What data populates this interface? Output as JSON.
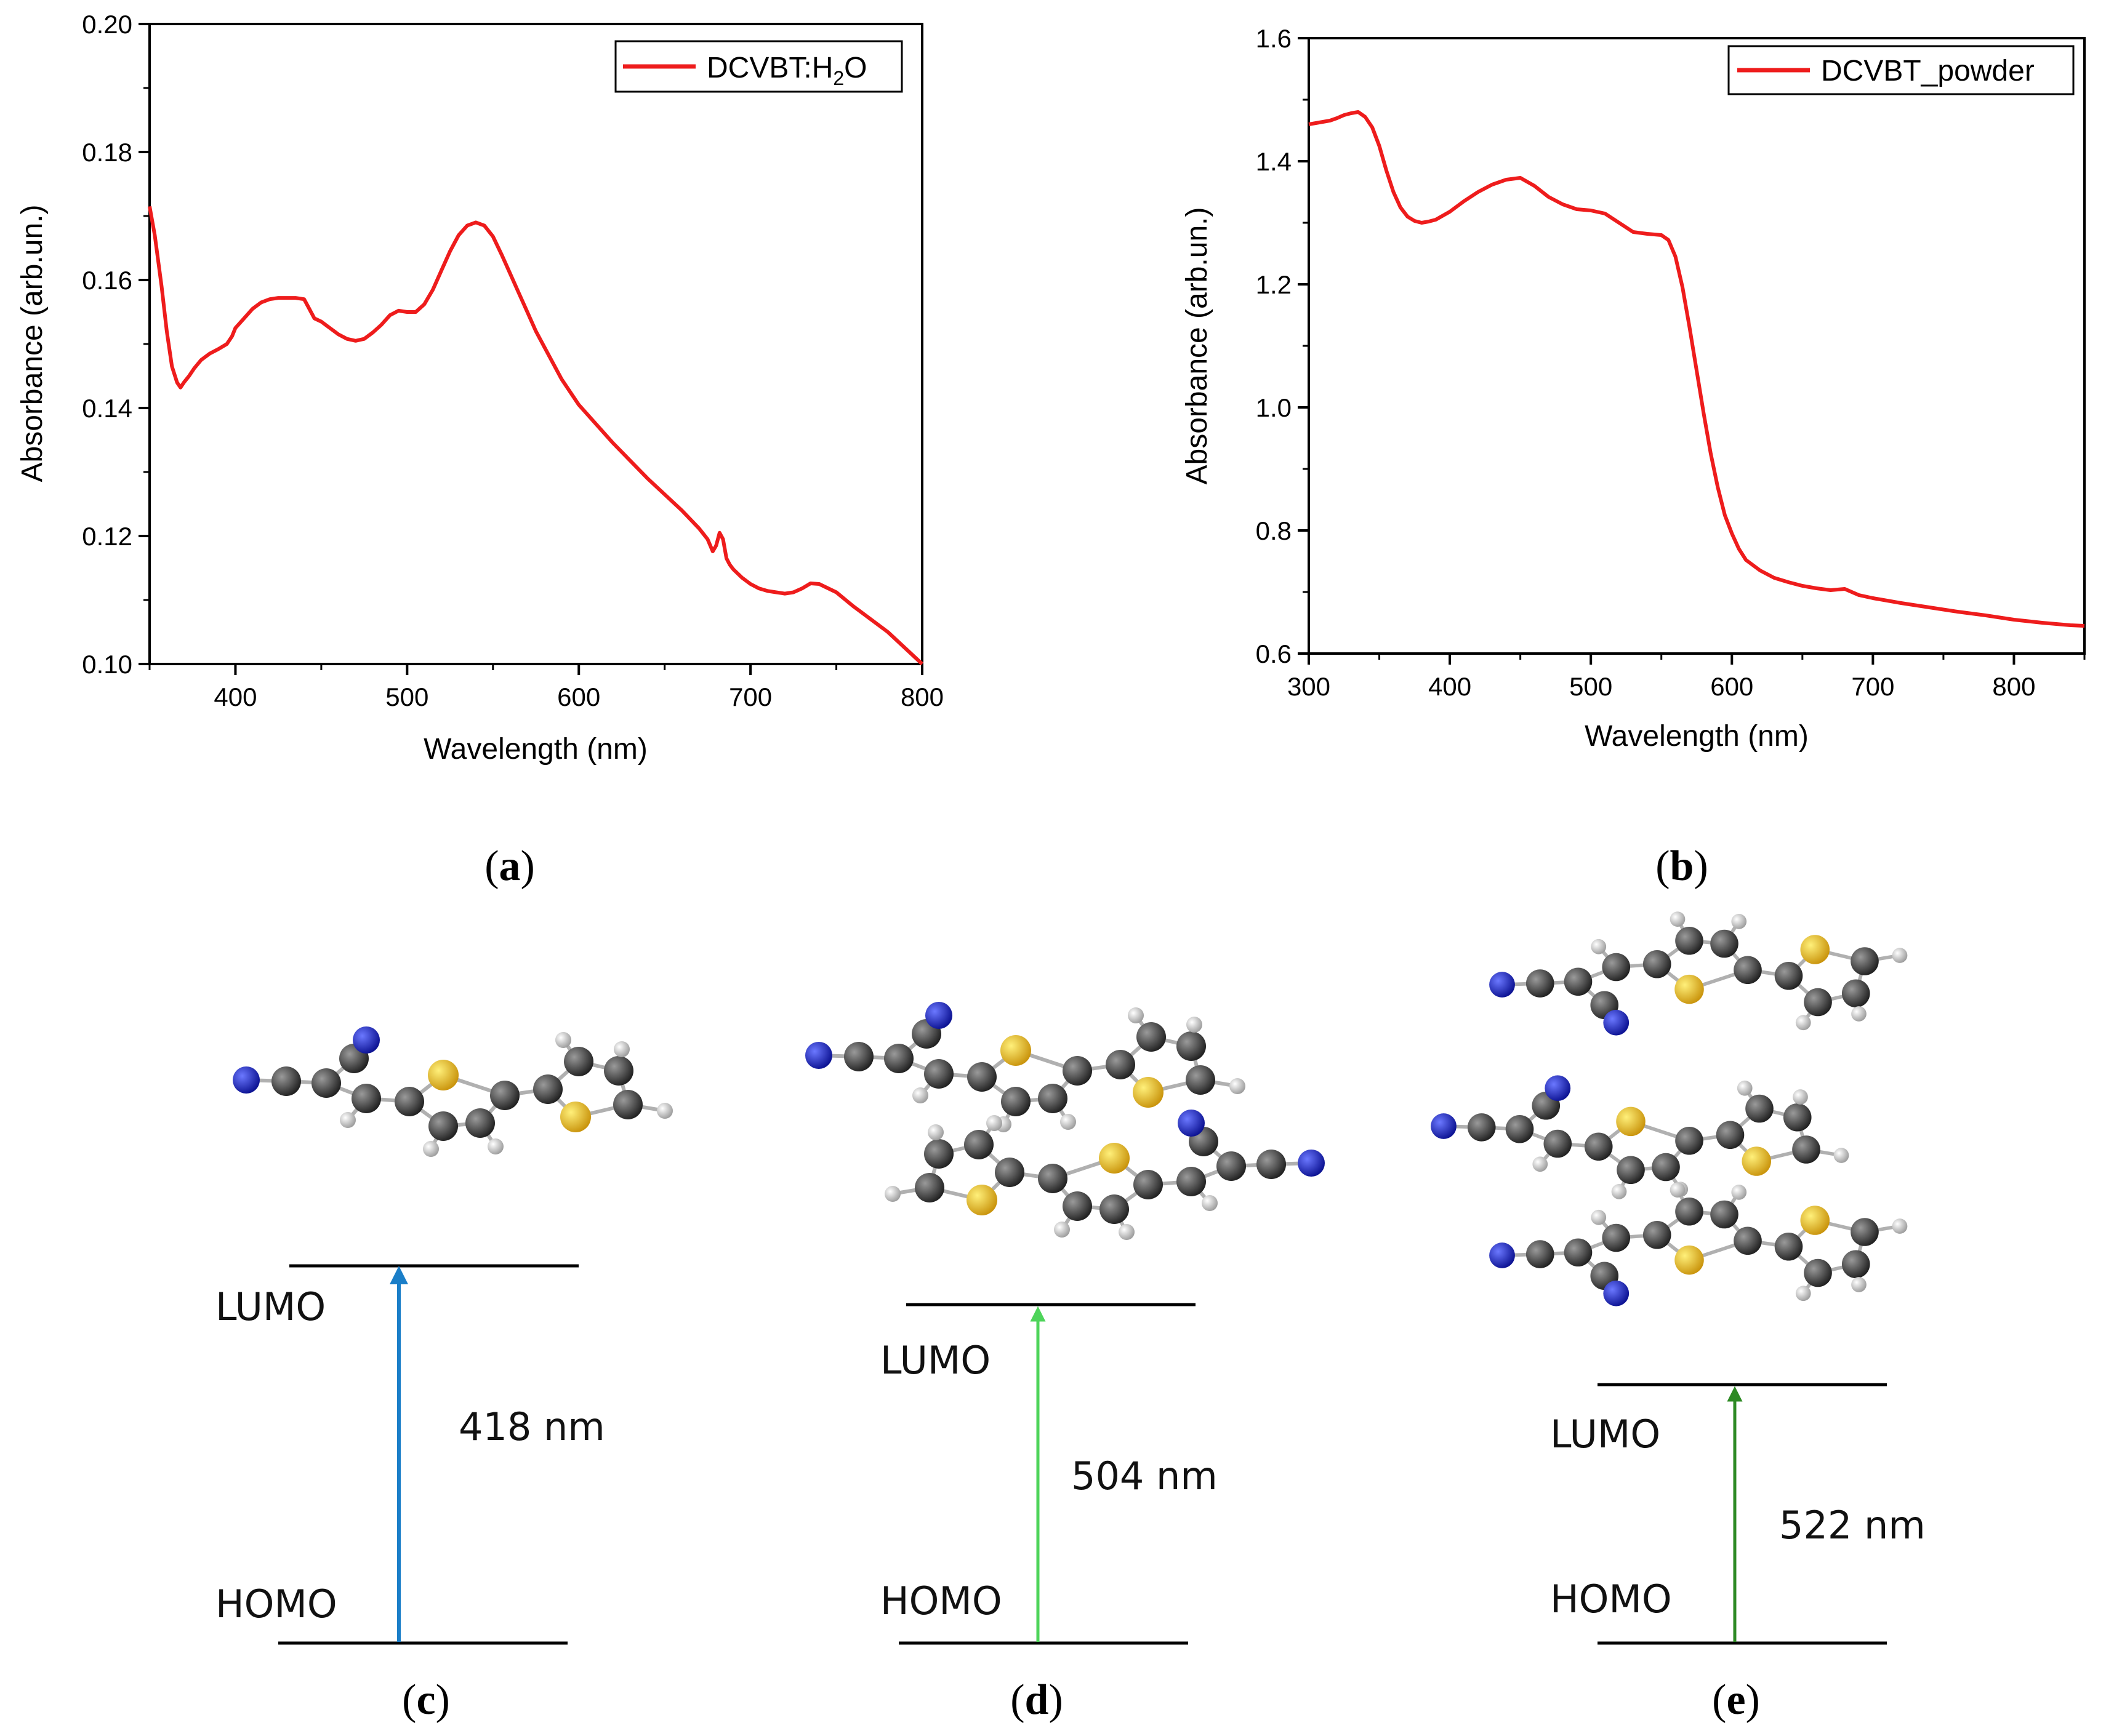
{
  "captions": {
    "a": {
      "open": "(",
      "letter": "a",
      "close": ")"
    },
    "b": {
      "open": "(",
      "letter": "b",
      "close": ")"
    },
    "c": {
      "open": "(",
      "letter": "c",
      "close": ")"
    },
    "d": {
      "open": "(",
      "letter": "d",
      "close": ")"
    },
    "e": {
      "open": "(",
      "letter": "e",
      "close": ")"
    }
  },
  "chart_data": [
    {
      "id": "a",
      "type": "line",
      "xlabel": "Wavelength (nm)",
      "ylabel": "Absorbance (arb.un.)",
      "xlim": [
        350,
        800
      ],
      "ylim": [
        0.1,
        0.2
      ],
      "xticks": [
        400,
        500,
        600,
        700,
        800
      ],
      "xtick_labels": [
        "400",
        "500",
        "600",
        "700",
        "800"
      ],
      "yticks": [
        0.1,
        0.12,
        0.14,
        0.16,
        0.18,
        0.2
      ],
      "ytick_labels": [
        "0.10",
        "0.12",
        "0.14",
        "0.16",
        "0.18",
        "0.20"
      ],
      "legend_position": "top-right",
      "series": [
        {
          "name": "DCVBT:H2O",
          "legend_main": "DCVBT:H",
          "legend_sub": "2",
          "legend_tail": "O",
          "color": "#ee1c1c",
          "x": [
            350,
            353,
            357,
            360,
            363,
            366,
            368,
            370,
            373,
            376,
            380,
            385,
            390,
            395,
            398,
            400,
            405,
            410,
            415,
            420,
            425,
            430,
            435,
            440,
            443,
            446,
            450,
            455,
            460,
            465,
            470,
            475,
            480,
            485,
            490,
            495,
            500,
            505,
            510,
            515,
            520,
            525,
            530,
            535,
            540,
            545,
            550,
            555,
            560,
            565,
            570,
            575,
            580,
            590,
            600,
            620,
            640,
            660,
            670,
            675,
            678,
            680,
            682,
            684,
            686,
            688,
            690,
            695,
            700,
            705,
            710,
            715,
            720,
            725,
            730,
            735,
            740,
            750,
            760,
            770,
            780,
            790,
            800
          ],
          "y": [
            0.1715,
            0.167,
            0.159,
            0.152,
            0.1465,
            0.144,
            0.1432,
            0.144,
            0.145,
            0.1462,
            0.1475,
            0.1485,
            0.1492,
            0.15,
            0.1512,
            0.1525,
            0.154,
            0.1555,
            0.1565,
            0.157,
            0.1572,
            0.1572,
            0.1572,
            0.157,
            0.1555,
            0.154,
            0.1535,
            0.1525,
            0.1515,
            0.1508,
            0.1505,
            0.1508,
            0.1518,
            0.153,
            0.1545,
            0.1552,
            0.155,
            0.155,
            0.1562,
            0.1585,
            0.1615,
            0.1645,
            0.167,
            0.1685,
            0.169,
            0.1685,
            0.1668,
            0.164,
            0.161,
            0.158,
            0.155,
            0.152,
            0.1495,
            0.1445,
            0.1405,
            0.1345,
            0.129,
            0.124,
            0.1212,
            0.1195,
            0.1176,
            0.1185,
            0.1205,
            0.1195,
            0.1165,
            0.1155,
            0.1148,
            0.1135,
            0.1125,
            0.1118,
            0.1114,
            0.1112,
            0.111,
            0.1112,
            0.1118,
            0.1126,
            0.1125,
            0.1112,
            0.109,
            0.107,
            0.105,
            0.1025,
            0.1
          ]
        }
      ]
    },
    {
      "id": "b",
      "type": "line",
      "xlabel": "Wavelength (nm)",
      "ylabel": "Absorbance (arb.un.)",
      "xlim": [
        300,
        850
      ],
      "ylim": [
        0.6,
        1.6
      ],
      "xticks": [
        300,
        400,
        500,
        600,
        700,
        800
      ],
      "xtick_labels": [
        "300",
        "400",
        "500",
        "600",
        "700",
        "800"
      ],
      "yticks": [
        0.6,
        0.8,
        1.0,
        1.2,
        1.4,
        1.6
      ],
      "ytick_labels": [
        "0.6",
        "0.8",
        "1.0",
        "1.2",
        "1.4",
        "1.6"
      ],
      "legend_position": "top-right",
      "series": [
        {
          "name": "DCVBT_powder",
          "color": "#ee1c1c",
          "x": [
            300,
            305,
            310,
            315,
            320,
            325,
            330,
            335,
            340,
            345,
            350,
            355,
            360,
            365,
            370,
            375,
            380,
            385,
            390,
            400,
            410,
            420,
            430,
            440,
            450,
            460,
            470,
            480,
            490,
            500,
            510,
            520,
            530,
            540,
            550,
            555,
            560,
            565,
            570,
            575,
            580,
            585,
            590,
            595,
            600,
            605,
            610,
            620,
            630,
            640,
            650,
            660,
            670,
            680,
            690,
            700,
            720,
            740,
            760,
            780,
            800,
            820,
            840,
            850
          ],
          "y": [
            1.46,
            1.462,
            1.464,
            1.466,
            1.47,
            1.475,
            1.478,
            1.48,
            1.472,
            1.455,
            1.425,
            1.385,
            1.35,
            1.325,
            1.31,
            1.303,
            1.3,
            1.302,
            1.305,
            1.318,
            1.335,
            1.35,
            1.362,
            1.37,
            1.373,
            1.36,
            1.342,
            1.33,
            1.322,
            1.32,
            1.315,
            1.3,
            1.285,
            1.282,
            1.28,
            1.272,
            1.245,
            1.195,
            1.13,
            1.06,
            0.99,
            0.925,
            0.87,
            0.825,
            0.795,
            0.77,
            0.752,
            0.735,
            0.723,
            0.716,
            0.71,
            0.706,
            0.703,
            0.705,
            0.695,
            0.69,
            0.682,
            0.675,
            0.668,
            0.662,
            0.655,
            0.65,
            0.646,
            0.645
          ]
        }
      ]
    }
  ],
  "diagrams": {
    "c": {
      "lumo": "LUMO",
      "homo": "HOMO",
      "transition": "418 nm",
      "arrow_color": "#1a7ec8",
      "text_color": "#1a7ec8"
    },
    "d": {
      "lumo": "LUMO",
      "homo": "HOMO",
      "transition": "504 nm",
      "arrow_color": "#4ed45a",
      "text_color": "#4ed45a"
    },
    "e": {
      "lumo": "LUMO",
      "homo": "HOMO",
      "transition": "522 nm",
      "arrow_color": "#2e8a24",
      "text_color": "#2e8a24"
    }
  },
  "atom_colors": {
    "carbon": "#3a3a3a",
    "nitrogen": "#1422c8",
    "sulfur": "#e6b422",
    "hydrogen": "#e8e8e8",
    "bond": "#b8b8b8"
  }
}
